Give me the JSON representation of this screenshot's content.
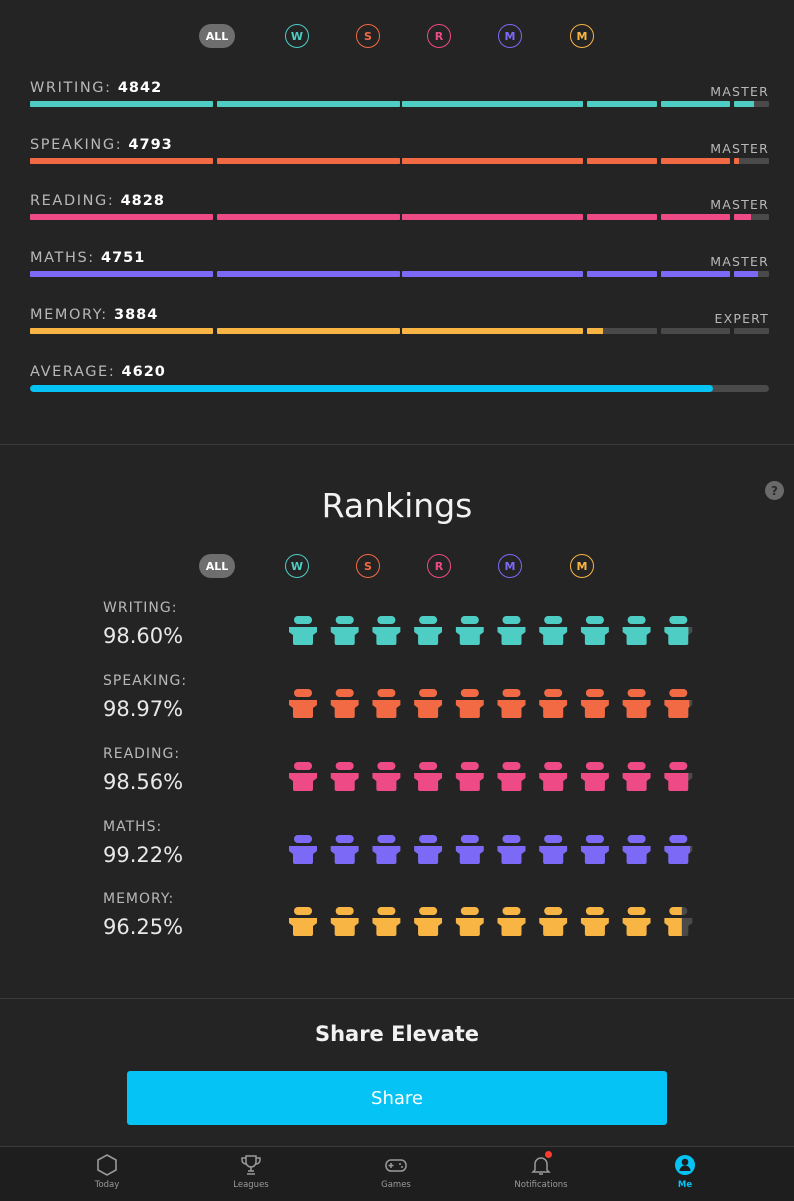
{
  "colors": {
    "writing": "#4ecdc4",
    "speaking": "#f26a43",
    "reading": "#ee4a85",
    "maths": "#7c6af7",
    "memory": "#f9b544",
    "average": "#05c3f5",
    "track": "#4a4a4a",
    "accent": "#05c3f5"
  },
  "filters": [
    {
      "label": "ALL",
      "key": "all"
    },
    {
      "label": "W",
      "key": "writing"
    },
    {
      "label": "S",
      "key": "speaking"
    },
    {
      "label": "R",
      "key": "reading"
    },
    {
      "label": "M",
      "key": "maths"
    },
    {
      "label": "M",
      "key": "memory"
    }
  ],
  "scores": [
    {
      "label": "WRITING:",
      "value": "4842",
      "level": "MASTER",
      "key": "writing",
      "progress": 0.98
    },
    {
      "label": "SPEAKING:",
      "value": "4793",
      "level": "MASTER",
      "key": "speaking",
      "progress": 0.96
    },
    {
      "label": "READING:",
      "value": "4828",
      "level": "MASTER",
      "key": "reading",
      "progress": 0.975
    },
    {
      "label": "MATHS:",
      "value": "4751",
      "level": "MASTER",
      "key": "maths",
      "progress": 0.985
    },
    {
      "label": "MEMORY:",
      "value": "3884",
      "level": "EXPERT",
      "key": "memory",
      "progress": 0.775
    }
  ],
  "average": {
    "label": "AVERAGE:",
    "value": "4620",
    "progress": 0.924
  },
  "rankings": {
    "title": "Rankings",
    "help": "?",
    "rows": [
      {
        "label": "WRITING:",
        "percent": "98.60%",
        "key": "writing",
        "fraction": 0.986
      },
      {
        "label": "SPEAKING:",
        "percent": "98.97%",
        "key": "speaking",
        "fraction": 0.9897
      },
      {
        "label": "READING:",
        "percent": "98.56%",
        "key": "reading",
        "fraction": 0.9856
      },
      {
        "label": "MATHS:",
        "percent": "99.22%",
        "key": "maths",
        "fraction": 0.9922
      },
      {
        "label": "MEMORY:",
        "percent": "96.25%",
        "key": "memory",
        "fraction": 0.9625
      }
    ]
  },
  "share": {
    "title": "Share Elevate",
    "button": "Share"
  },
  "tabs": [
    {
      "label": "Today",
      "icon": "hexagon-icon"
    },
    {
      "label": "Leagues",
      "icon": "trophy-icon"
    },
    {
      "label": "Games",
      "icon": "gamepad-icon"
    },
    {
      "label": "Notifications",
      "icon": "bell-icon"
    },
    {
      "label": "Me",
      "icon": "profile-icon",
      "active": true
    }
  ]
}
